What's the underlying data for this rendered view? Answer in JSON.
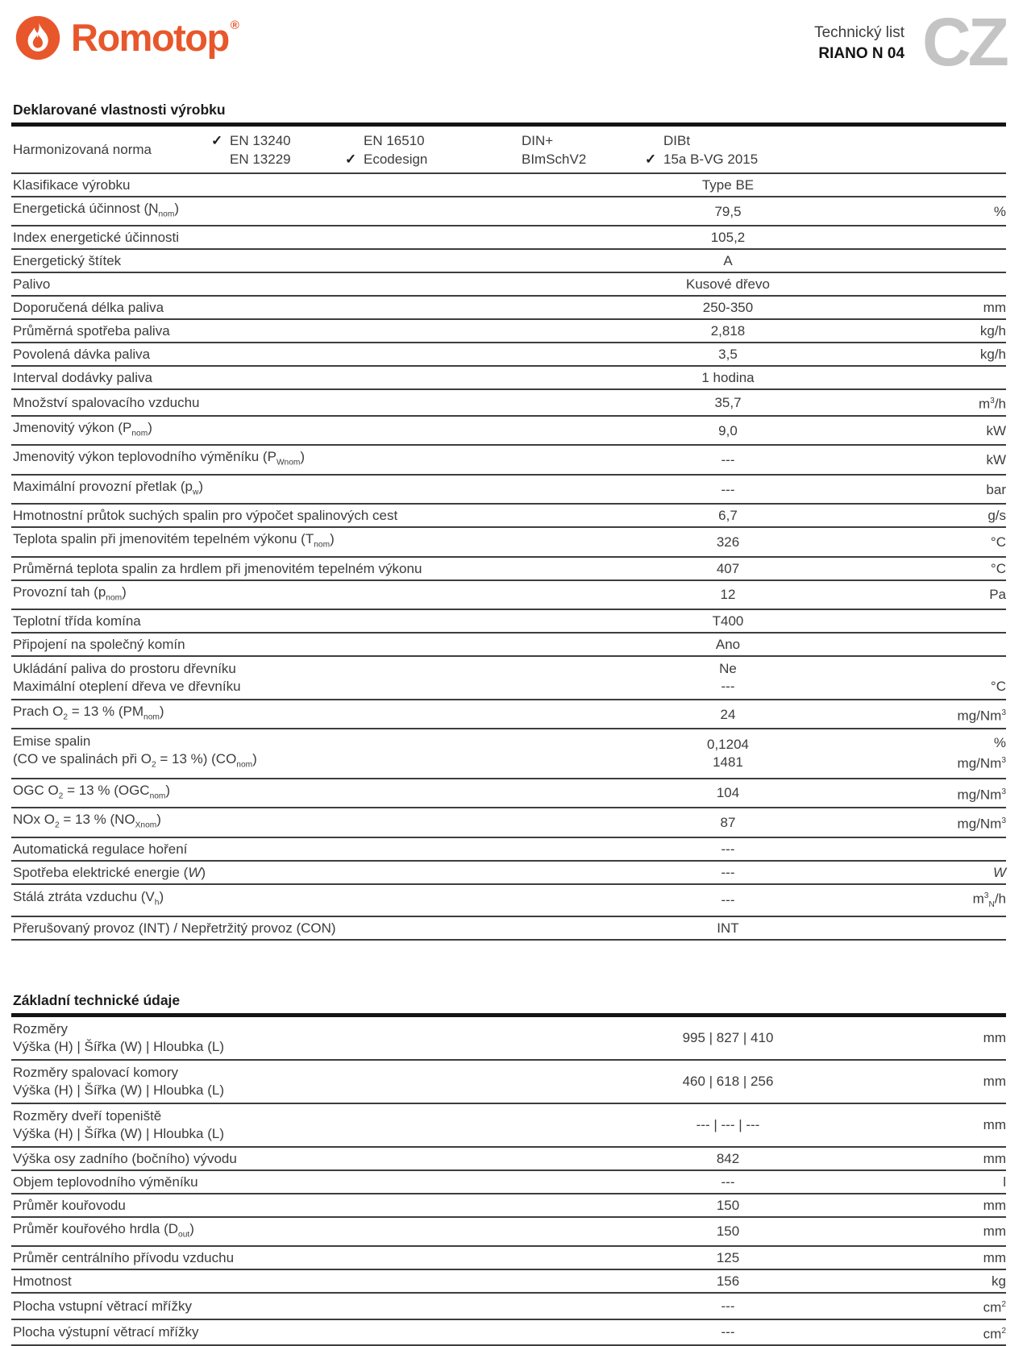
{
  "header": {
    "brand": "Romotop",
    "registered": "®",
    "doc_type": "Technický list",
    "model": "RIANO N 04",
    "lang_code": "CZ"
  },
  "colors": {
    "brand_orange": "#E8572B",
    "lang_gray": "#C4C4C4",
    "text": "#3C3C3C",
    "rule_thick": "#141414",
    "rule_row": "#3E3E3E"
  },
  "icons": {
    "flame": "flame-icon",
    "check": "✓"
  },
  "sections": [
    {
      "title": "Deklarované vlastnosti výrobku",
      "norms_row": {
        "label": "Harmonizovaná norma",
        "columns": [
          {
            "items": [
              {
                "checked": true,
                "label": "EN 13240"
              },
              {
                "checked": false,
                "label": "EN 13229"
              }
            ]
          },
          {
            "items": [
              {
                "checked": false,
                "label": "EN 16510"
              },
              {
                "checked": true,
                "label": "Ecodesign"
              }
            ]
          },
          {
            "items": [
              {
                "checked": false,
                "label": "DIN+"
              },
              {
                "checked": false,
                "label": "BImSchV2"
              }
            ]
          },
          {
            "items": [
              {
                "checked": false,
                "label": "DIBt"
              },
              {
                "checked": true,
                "label": "15a B-VG 2015"
              }
            ]
          }
        ]
      },
      "rows": [
        {
          "label": [
            "Klasifikace výrobku"
          ],
          "value": [
            "Type BE"
          ],
          "unit": [
            ""
          ]
        },
        {
          "label": [
            "Energetická účinnost (Ɲ~nom~)"
          ],
          "value": [
            "79,5"
          ],
          "unit": [
            "%"
          ]
        },
        {
          "label": [
            "Index energetické účinnosti"
          ],
          "value": [
            "105,2"
          ],
          "unit": [
            ""
          ]
        },
        {
          "label": [
            "Energetický štítek"
          ],
          "value": [
            "A"
          ],
          "unit": [
            ""
          ]
        },
        {
          "label": [
            "Palivo"
          ],
          "value": [
            "Kusové dřevo"
          ],
          "unit": [
            ""
          ]
        },
        {
          "label": [
            "Doporučená délka paliva"
          ],
          "value": [
            "250-350"
          ],
          "unit": [
            "mm"
          ]
        },
        {
          "label": [
            "Průměrná spotřeba paliva"
          ],
          "value": [
            "2,818"
          ],
          "unit": [
            "kg/h"
          ]
        },
        {
          "label": [
            "Povolená dávka paliva"
          ],
          "value": [
            "3,5"
          ],
          "unit": [
            "kg/h"
          ]
        },
        {
          "label": [
            "Interval dodávky paliva"
          ],
          "value": [
            "1 hodina"
          ],
          "unit": [
            ""
          ]
        },
        {
          "label": [
            "Množství spalovacího vzduchu"
          ],
          "value": [
            "35,7"
          ],
          "unit": [
            "m^3^/h"
          ]
        },
        {
          "label": [
            "Jmenovitý výkon (P~nom~)"
          ],
          "value": [
            "9,0"
          ],
          "unit": [
            "kW"
          ]
        },
        {
          "label": [
            "Jmenovitý výkon teplovodního výměníku (P~Wnom~)"
          ],
          "value": [
            "---"
          ],
          "unit": [
            "kW"
          ]
        },
        {
          "label": [
            "Maximální provozní přetlak (p~w~)"
          ],
          "value": [
            "---"
          ],
          "unit": [
            "bar"
          ]
        },
        {
          "label": [
            "Hmotnostní průtok suchých spalin pro výpočet spalinových cest"
          ],
          "value": [
            "6,7"
          ],
          "unit": [
            "g/s"
          ]
        },
        {
          "label": [
            "Teplota spalin při jmenovitém tepelném výkonu (T~nom~)"
          ],
          "value": [
            "326"
          ],
          "unit": [
            "°C"
          ]
        },
        {
          "label": [
            "Průměrná teplota spalin za hrdlem při jmenovitém tepelném výkonu"
          ],
          "value": [
            "407"
          ],
          "unit": [
            "°C"
          ]
        },
        {
          "label": [
            "Provozní tah (p~nom~)"
          ],
          "value": [
            "12"
          ],
          "unit": [
            "Pa"
          ]
        },
        {
          "label": [
            "Teplotní třída komína"
          ],
          "value": [
            "T400"
          ],
          "unit": [
            ""
          ]
        },
        {
          "label": [
            "Připojení na společný komín"
          ],
          "value": [
            "Ano"
          ],
          "unit": [
            ""
          ]
        },
        {
          "label": [
            "Ukládání paliva do prostoru dřevníku",
            "Maximální oteplení dřeva ve dřevníku"
          ],
          "value": [
            "Ne",
            "---"
          ],
          "unit": [
            "",
            "°C"
          ]
        },
        {
          "label": [
            "Prach O~2~ = 13 % (PM~nom~)"
          ],
          "value": [
            "24"
          ],
          "unit": [
            "mg/Nm^3^"
          ]
        },
        {
          "label": [
            "Emise spalin",
            "(CO ve spalinách při O~2~ = 13 %) (CO~nom~)"
          ],
          "value": [
            "0,1204",
            "1481"
          ],
          "unit": [
            "%",
            "mg/Nm^3^"
          ]
        },
        {
          "label": [
            "OGC O~2~ = 13 % (OGC~nom~)"
          ],
          "value": [
            "104"
          ],
          "unit": [
            "mg/Nm^3^"
          ]
        },
        {
          "label": [
            "NOx O~2~ = 13 % (NO~Xnom~)"
          ],
          "value": [
            "87"
          ],
          "unit": [
            "mg/Nm^3^"
          ]
        },
        {
          "label": [
            "Automatická regulace hoření"
          ],
          "value": [
            "---"
          ],
          "unit": [
            ""
          ]
        },
        {
          "label": [
            "Spotřeba elektrické energie (*W*)"
          ],
          "value": [
            "---"
          ],
          "unit": [
            "*W*"
          ]
        },
        {
          "label": [
            "Stálá ztráta vzduchu (V~h~)"
          ],
          "value": [
            "---"
          ],
          "unit": [
            "m^3^~N~/h"
          ]
        },
        {
          "label": [
            "Přerušovaný provoz (INT) / Nepřetržitý provoz (CON)"
          ],
          "value": [
            "INT"
          ],
          "unit": [
            ""
          ]
        }
      ]
    },
    {
      "title": "Základní technické údaje",
      "rows": [
        {
          "label": [
            "Rozměry",
            "Výška (H) | Šířka (W) | Hloubka (L)"
          ],
          "value": [
            "995 | 827 | 410"
          ],
          "unit": [
            "mm"
          ]
        },
        {
          "label": [
            "Rozměry spalovací komory",
            "Výška (H) | Šířka (W) | Hloubka (L)"
          ],
          "value": [
            "460 | 618 | 256"
          ],
          "unit": [
            "mm"
          ]
        },
        {
          "label": [
            "Rozměry dveří topeniště",
            "Výška (H) | Šířka (W) | Hloubka (L)"
          ],
          "value": [
            "--- | --- | ---"
          ],
          "unit": [
            "mm"
          ]
        },
        {
          "label": [
            "Výška osy zadního (bočního) vývodu"
          ],
          "value": [
            "842"
          ],
          "unit": [
            "mm"
          ]
        },
        {
          "label": [
            "Objem teplovodního výměníku"
          ],
          "value": [
            "---"
          ],
          "unit": [
            "l"
          ]
        },
        {
          "label": [
            "Průměr kouřovodu"
          ],
          "value": [
            "150"
          ],
          "unit": [
            "mm"
          ]
        },
        {
          "label": [
            "Průměr kouřového hrdla (D~out~)"
          ],
          "value": [
            "150"
          ],
          "unit": [
            "mm"
          ]
        },
        {
          "label": [
            "Průměr centrálního přívodu vzduchu"
          ],
          "value": [
            "125"
          ],
          "unit": [
            "mm"
          ]
        },
        {
          "label": [
            "Hmotnost"
          ],
          "value": [
            "156"
          ],
          "unit": [
            "kg"
          ]
        },
        {
          "label": [
            "Plocha vstupní větrací mřížky"
          ],
          "value": [
            "---"
          ],
          "unit": [
            "cm^2^"
          ]
        },
        {
          "label": [
            "Plocha výstupní větrací mřížky"
          ],
          "value": [
            "---"
          ],
          "unit": [
            "cm^2^"
          ]
        }
      ]
    }
  ]
}
